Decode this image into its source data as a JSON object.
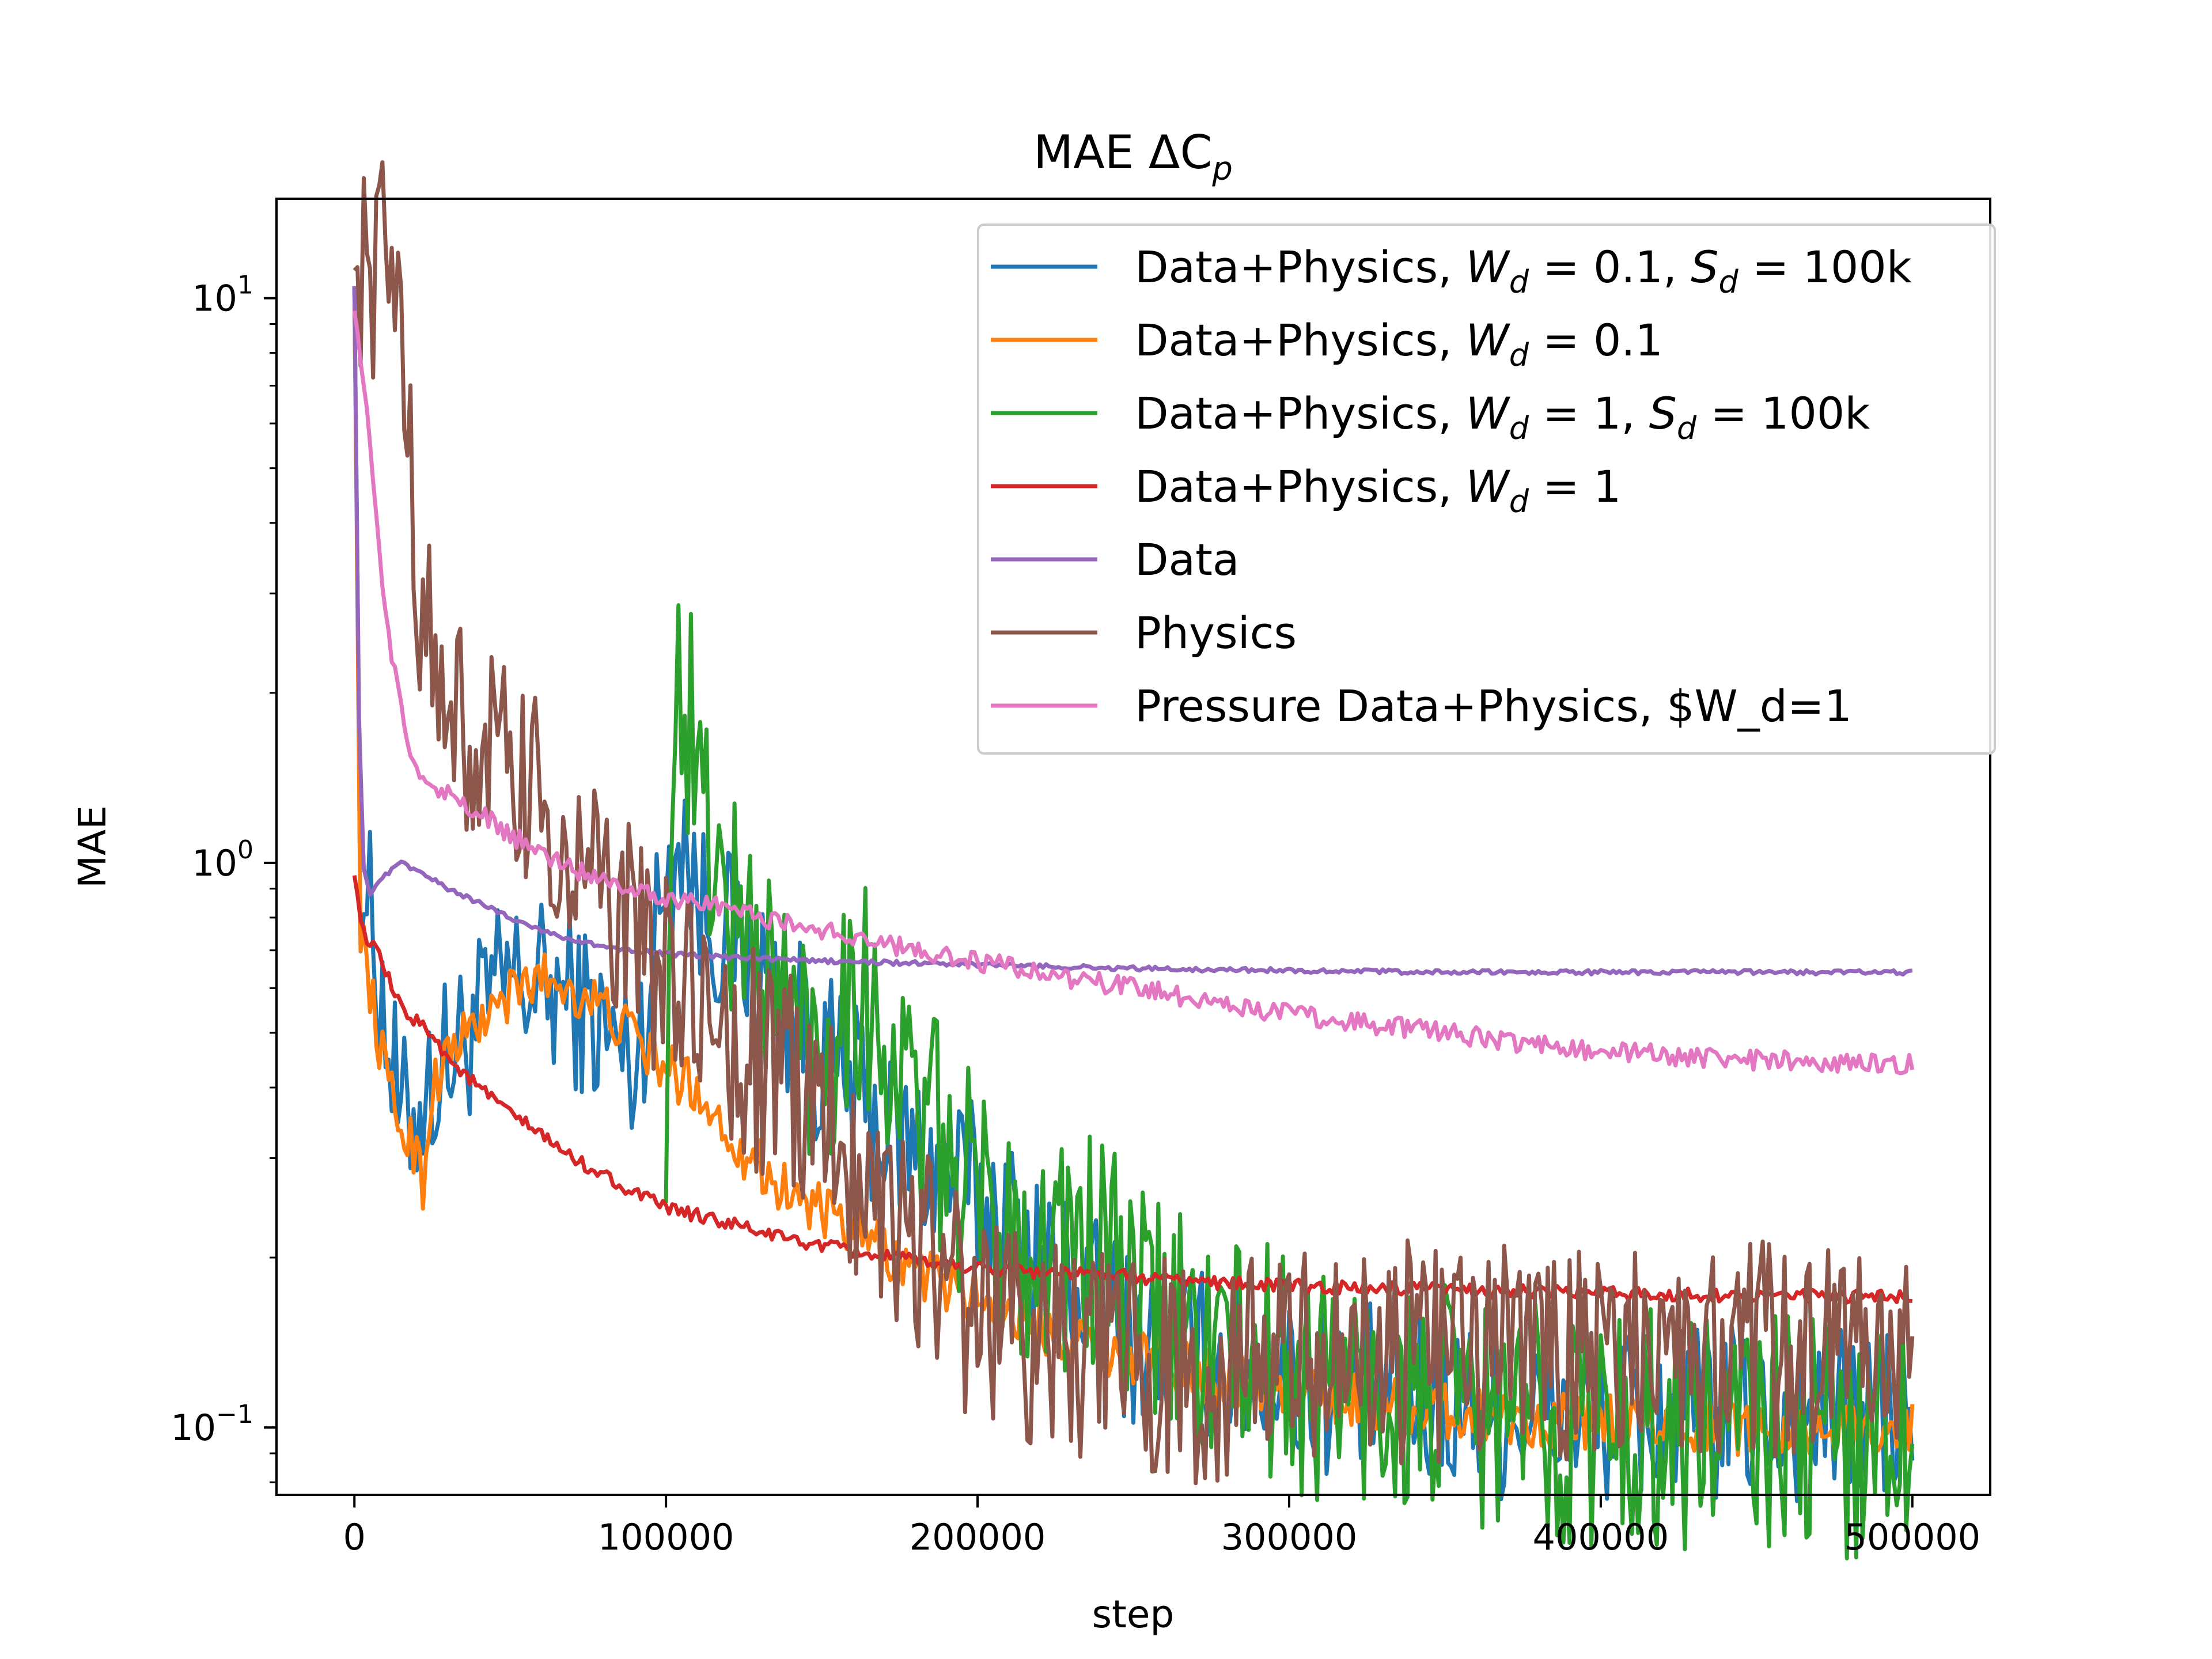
{
  "chart_data": {
    "type": "line",
    "title": {
      "main": "MAE ΔC",
      "sub": "p"
    },
    "xlabel": "step",
    "ylabel": "MAE",
    "xlim": [
      -25000,
      525000
    ],
    "ylim": [
      0.076,
      15.0
    ],
    "yscale": "log",
    "grid": false,
    "legend_position": "top-right",
    "x_ticks": [
      {
        "value": 0,
        "label": "0"
      },
      {
        "value": 100000,
        "label": "100000"
      },
      {
        "value": 200000,
        "label": "200000"
      },
      {
        "value": 300000,
        "label": "300000"
      },
      {
        "value": 400000,
        "label": "400000"
      },
      {
        "value": 500000,
        "label": "500000"
      }
    ],
    "y_ticks": [
      {
        "value": 10,
        "base": "10",
        "exp": "1"
      },
      {
        "value": 1,
        "base": "10",
        "exp": "0"
      },
      {
        "value": 0.1,
        "base": "10",
        "exp": "−1"
      }
    ],
    "series": [
      {
        "name": [
          {
            "t": "Data+Physics, "
          },
          {
            "t": "W",
            "i": true
          },
          {
            "t": "d",
            "sub": true,
            "i": true
          },
          {
            "t": " = 0.1, "
          },
          {
            "t": "S",
            "i": true
          },
          {
            "t": "d",
            "sub": true,
            "i": true
          },
          {
            "t": " = 100k"
          }
        ],
        "color": "#1f77b4",
        "noise": 0.16,
        "x": [
          0,
          2000,
          5000,
          15000,
          30000,
          50000,
          70000,
          90000,
          100000,
          105000,
          110000,
          125000,
          150000,
          175000,
          200000,
          225000,
          250000,
          275000,
          300000,
          325000,
          350000,
          375000,
          400000,
          425000,
          450000,
          475000,
          500000
        ],
        "y": [
          10.5,
          1.0,
          0.8,
          0.34,
          0.45,
          0.62,
          0.58,
          0.43,
          0.95,
          1.2,
          0.85,
          0.7,
          0.45,
          0.32,
          0.26,
          0.19,
          0.145,
          0.132,
          0.122,
          0.115,
          0.11,
          0.107,
          0.105,
          0.105,
          0.105,
          0.105,
          0.105
        ]
      },
      {
        "name": [
          {
            "t": "Data+Physics, "
          },
          {
            "t": "W",
            "i": true
          },
          {
            "t": "d",
            "sub": true,
            "i": true
          },
          {
            "t": " = 0.1"
          }
        ],
        "color": "#ff7f0e",
        "noise": 0.05,
        "x": [
          0,
          2000,
          5000,
          10000,
          15000,
          20000,
          22000,
          25000,
          30000,
          40000,
          50000,
          60000,
          70000,
          80000,
          90000,
          100000,
          110000,
          120000,
          130000,
          140000,
          150000,
          160000,
          170000,
          180000,
          200000,
          225000,
          250000,
          275000,
          300000,
          325000,
          350000,
          375000,
          400000,
          425000,
          450000,
          475000,
          500000
        ],
        "y": [
          10.5,
          0.78,
          0.6,
          0.42,
          0.34,
          0.31,
          0.27,
          0.4,
          0.46,
          0.52,
          0.58,
          0.63,
          0.6,
          0.55,
          0.49,
          0.43,
          0.4,
          0.33,
          0.29,
          0.26,
          0.24,
          0.22,
          0.205,
          0.19,
          0.17,
          0.148,
          0.134,
          0.123,
          0.116,
          0.111,
          0.107,
          0.104,
          0.102,
          0.101,
          0.1,
          0.1,
          0.1
        ]
      },
      {
        "name": [
          {
            "t": "Data+Physics, "
          },
          {
            "t": "W",
            "i": true
          },
          {
            "t": "d",
            "sub": true,
            "i": true
          },
          {
            "t": " = 1, "
          },
          {
            "t": "S",
            "i": true
          },
          {
            "t": "d",
            "sub": true,
            "i": true
          },
          {
            "t": " = 100k"
          }
        ],
        "color": "#2ca02c",
        "noise": 0.22,
        "x": [
          100000,
          102000,
          105000,
          108000,
          112000,
          120000,
          135000,
          150000,
          160000,
          175000,
          190000,
          200000,
          220000,
          240000,
          250000,
          275000,
          300000,
          325000,
          350000,
          375000,
          400000,
          425000,
          450000,
          475000,
          500000
        ],
        "y": [
          0.25,
          1.9,
          2.0,
          1.7,
          1.2,
          0.85,
          0.6,
          0.45,
          0.65,
          0.42,
          0.3,
          0.25,
          0.21,
          0.2,
          0.165,
          0.14,
          0.125,
          0.115,
          0.108,
          0.104,
          0.1,
          0.1,
          0.098,
          0.097,
          0.097
        ]
      },
      {
        "name": [
          {
            "t": "Data+Physics, "
          },
          {
            "t": "W",
            "i": true
          },
          {
            "t": "d",
            "sub": true,
            "i": true
          },
          {
            "t": " = 1"
          }
        ],
        "color": "#d62728",
        "noise": 0.012,
        "x": [
          0,
          3000,
          8000,
          15000,
          25000,
          30000,
          40000,
          50000,
          60000,
          70000,
          80000,
          90000,
          100000,
          120000,
          140000,
          160000,
          180000,
          200000,
          225000,
          250000,
          275000,
          300000,
          350000,
          400000,
          450000,
          500000
        ],
        "y": [
          0.95,
          0.75,
          0.68,
          0.55,
          0.5,
          0.45,
          0.4,
          0.36,
          0.33,
          0.3,
          0.28,
          0.26,
          0.245,
          0.23,
          0.215,
          0.205,
          0.197,
          0.192,
          0.188,
          0.185,
          0.181,
          0.178,
          0.175,
          0.173,
          0.171,
          0.17
        ]
      },
      {
        "name": [
          {
            "t": "Data"
          }
        ],
        "color": "#9467bd",
        "noise": 0.004,
        "x": [
          0,
          1500,
          3000,
          5000,
          10000,
          15000,
          20000,
          30000,
          40000,
          50000,
          60000,
          70000,
          80000,
          100000,
          120000,
          150000,
          175000,
          200000,
          250000,
          300000,
          350000,
          400000,
          450000,
          500000
        ],
        "y": [
          10.5,
          1.8,
          0.98,
          0.88,
          0.95,
          1.0,
          0.97,
          0.9,
          0.85,
          0.8,
          0.76,
          0.73,
          0.71,
          0.69,
          0.68,
          0.67,
          0.665,
          0.66,
          0.65,
          0.645,
          0.64,
          0.64,
          0.64,
          0.64
        ]
      },
      {
        "name": [
          {
            "t": "Physics"
          }
        ],
        "color": "#8c564b",
        "noise": 0.2,
        "x": [
          0,
          2000,
          5000,
          10000,
          15000,
          18000,
          20000,
          25000,
          30000,
          40000,
          50000,
          60000,
          70000,
          80000,
          90000,
          100000,
          110000,
          120000,
          130000,
          140000,
          150000,
          160000,
          170000,
          180000,
          190000,
          200000,
          210000,
          220000,
          230000,
          240000,
          250000,
          260000,
          270000,
          280000,
          290000,
          300000,
          350000,
          400000,
          450000,
          500000
        ],
        "y": [
          11.2,
          11.5,
          11.5,
          11.2,
          10.0,
          5.5,
          3.5,
          2.2,
          1.8,
          1.6,
          1.4,
          1.2,
          1.0,
          0.85,
          0.75,
          0.62,
          0.55,
          0.48,
          0.44,
          0.4,
          0.36,
          0.3,
          0.26,
          0.22,
          0.18,
          0.16,
          0.15,
          0.145,
          0.14,
          0.132,
          0.128,
          0.126,
          0.125,
          0.127,
          0.13,
          0.133,
          0.137,
          0.138,
          0.138,
          0.137
        ]
      },
      {
        "name": [
          {
            "t": "Pressure Data+Physics, $W_d=1"
          }
        ],
        "color": "#e377c2",
        "noise": 0.018,
        "x": [
          0,
          2000,
          5000,
          8000,
          12000,
          15000,
          17000,
          20000,
          25000,
          30000,
          40000,
          50000,
          60000,
          70000,
          80000,
          90000,
          100000,
          120000,
          140000,
          160000,
          180000,
          200000,
          225000,
          250000,
          275000,
          300000,
          325000,
          350000,
          375000,
          400000,
          425000,
          450000,
          475000,
          500000
        ],
        "y": [
          9.5,
          8.0,
          5.5,
          3.5,
          2.3,
          1.95,
          1.6,
          1.45,
          1.38,
          1.32,
          1.22,
          1.12,
          1.04,
          0.98,
          0.94,
          0.9,
          0.87,
          0.83,
          0.78,
          0.74,
          0.7,
          0.67,
          0.63,
          0.6,
          0.57,
          0.54,
          0.52,
          0.5,
          0.48,
          0.465,
          0.455,
          0.448,
          0.443,
          0.44
        ]
      }
    ]
  }
}
